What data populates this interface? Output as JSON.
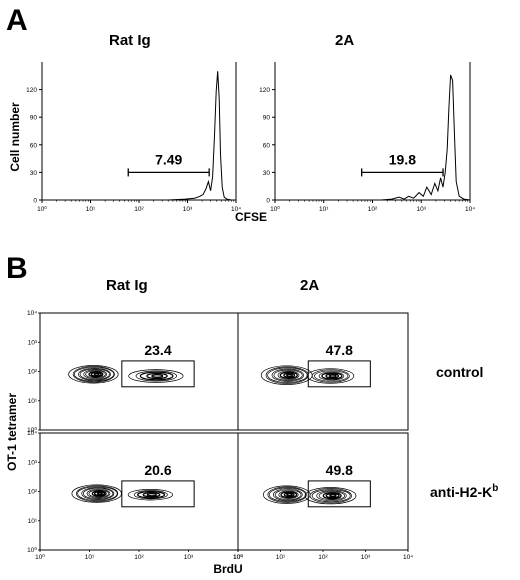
{
  "panel_a": {
    "letter": "A",
    "x_label": "CFSE",
    "y_label": "Cell number",
    "x_ticks": [
      "10⁰",
      "10¹",
      "10²",
      "10³",
      "10⁴"
    ],
    "y_ticks": [
      "0",
      "30",
      "60",
      "90",
      "120"
    ]
  },
  "panel_b": {
    "letter": "B",
    "x_label": "BrdU",
    "y_label": "OT-1 tetramer",
    "ticks": [
      "10⁰",
      "10¹",
      "10²",
      "10³",
      "10⁴"
    ],
    "row_labels": {
      "control": "control",
      "anti_prefix": "anti-H2-K",
      "anti_sup": "b"
    }
  },
  "chart_data": [
    {
      "type": "histogram",
      "panel": "A",
      "title": "Rat Ig",
      "xlabel": "CFSE",
      "ylabel": "Cell number",
      "x_scale": "log",
      "xlim": [
        1,
        10000
      ],
      "ylim": [
        0,
        150
      ],
      "gate_label": "7.49",
      "gate_range": [
        60,
        2800
      ],
      "curve": {
        "x": [
          1,
          100,
          400,
          900,
          1400,
          1800,
          2100,
          2400,
          2700,
          3000,
          3300,
          3600,
          3900,
          4200,
          4500,
          4800,
          5200,
          5700,
          6500,
          8000,
          10000
        ],
        "y": [
          0,
          0,
          0,
          1,
          2,
          4,
          6,
          12,
          20,
          10,
          25,
          70,
          118,
          140,
          110,
          50,
          14,
          3,
          1,
          0,
          0
        ]
      }
    },
    {
      "type": "histogram",
      "panel": "A",
      "title": "2A",
      "xlabel": "CFSE",
      "ylabel": "Cell number",
      "x_scale": "log",
      "xlim": [
        1,
        10000
      ],
      "ylim": [
        0,
        150
      ],
      "gate_label": "19.8",
      "gate_range": [
        60,
        2800
      ],
      "curve": {
        "x": [
          1,
          150,
          250,
          350,
          450,
          550,
          700,
          900,
          1100,
          1300,
          1600,
          1900,
          2200,
          2500,
          2800,
          3100,
          3400,
          3700,
          4000,
          4400,
          4800,
          5200,
          6000,
          7500,
          10000
        ],
        "y": [
          0,
          0,
          1,
          3,
          1,
          4,
          2,
          8,
          4,
          14,
          6,
          18,
          10,
          24,
          14,
          30,
          55,
          100,
          136,
          130,
          70,
          20,
          4,
          1,
          0
        ]
      }
    },
    {
      "type": "contour",
      "panel": "B",
      "title": "Rat Ig",
      "row": "control",
      "xlabel": "BrdU",
      "ylabel": "OT-1 tetramer",
      "x_scale": "log",
      "y_scale": "log",
      "xlim": [
        1,
        10000
      ],
      "ylim": [
        1,
        10000
      ],
      "gate_label": "23.4",
      "gate": {
        "x": [
          45,
          1300
        ],
        "y": [
          30,
          230
        ]
      },
      "populations": [
        {
          "x": 12,
          "y": 80,
          "w": 0.5,
          "h": 0.3,
          "levels": 10
        },
        {
          "x": 220,
          "y": 70,
          "w": 0.55,
          "h": 0.22,
          "levels": 5
        }
      ]
    },
    {
      "type": "contour",
      "panel": "B",
      "title": "2A",
      "row": "control",
      "xlabel": "BrdU",
      "ylabel": "OT-1 tetramer",
      "x_scale": "log",
      "y_scale": "log",
      "xlim": [
        1,
        10000
      ],
      "ylim": [
        1,
        10000
      ],
      "gate_label": "47.8",
      "gate": {
        "x": [
          45,
          1300
        ],
        "y": [
          30,
          230
        ]
      },
      "populations": [
        {
          "x": 14,
          "y": 75,
          "w": 0.6,
          "h": 0.32,
          "levels": 9
        },
        {
          "x": 150,
          "y": 70,
          "w": 0.55,
          "h": 0.25,
          "levels": 7
        }
      ]
    },
    {
      "type": "contour",
      "panel": "B",
      "title": "Rat Ig",
      "row": "anti-H2-Kb",
      "xlabel": "BrdU",
      "ylabel": "OT-1 tetramer",
      "x_scale": "log",
      "y_scale": "log",
      "xlim": [
        1,
        10000
      ],
      "ylim": [
        1,
        10000
      ],
      "gate_label": "20.6",
      "gate": {
        "x": [
          45,
          1300
        ],
        "y": [
          30,
          230
        ]
      },
      "populations": [
        {
          "x": 14,
          "y": 85,
          "w": 0.5,
          "h": 0.3,
          "levels": 10
        },
        {
          "x": 170,
          "y": 78,
          "w": 0.45,
          "h": 0.18,
          "levels": 5
        }
      ]
    },
    {
      "type": "contour",
      "panel": "B",
      "title": "2A",
      "row": "anti-H2-Kb",
      "xlabel": "BrdU",
      "ylabel": "OT-1 tetramer",
      "x_scale": "log",
      "y_scale": "log",
      "xlim": [
        1,
        10000
      ],
      "ylim": [
        1,
        10000
      ],
      "gate_label": "49.8",
      "gate": {
        "x": [
          45,
          1300
        ],
        "y": [
          30,
          230
        ]
      },
      "populations": [
        {
          "x": 14,
          "y": 78,
          "w": 0.55,
          "h": 0.3,
          "levels": 9
        },
        {
          "x": 150,
          "y": 72,
          "w": 0.6,
          "h": 0.28,
          "levels": 8
        }
      ]
    }
  ]
}
